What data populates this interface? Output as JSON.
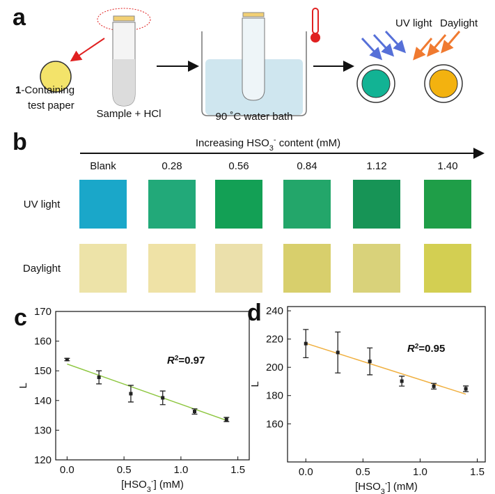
{
  "panel_a": {
    "label": "a",
    "paper_compound": "1",
    "paper_rest": "-Containing",
    "paper_line2": "test paper",
    "tube_label": "Sample + HCl",
    "bath_label": "90 ˚C water bath",
    "uv_label": "UV light",
    "daylight_label": "Daylight"
  },
  "panel_b": {
    "label": "b",
    "title_parts": [
      "Increasing HSO",
      "3",
      "-",
      " content (mM)"
    ],
    "columns": [
      "Blank",
      "0.28",
      "0.56",
      "0.84",
      "1.12",
      "1.40"
    ],
    "rows": [
      {
        "name": "UV light",
        "colors": [
          "#1aa7c9",
          "#22a979",
          "#13a055",
          "#23a66a",
          "#179456",
          "#1f9e48"
        ]
      },
      {
        "name": "Daylight",
        "colors": [
          "#ede3a8",
          "#efe2a6",
          "#ebe0ab",
          "#d8cf6c",
          "#d9d27a",
          "#d3cf52"
        ]
      }
    ]
  },
  "chart_data": [
    {
      "panel": "c",
      "type": "scatter",
      "x": [
        0,
        0.28,
        0.56,
        0.84,
        1.12,
        1.4
      ],
      "series": [
        {
          "values": [
            153.8,
            147.8,
            142.3,
            140.9,
            136.3,
            133.6
          ],
          "errors": [
            0.4,
            2.2,
            2.8,
            2.3,
            0.9,
            0.7
          ],
          "color": "#222222"
        }
      ],
      "fit": {
        "x": [
          0,
          1.4
        ],
        "y": [
          152.3,
          133.3
        ],
        "color": "#8dc63f"
      },
      "annotation_parts": [
        "R",
        "2",
        "=0.97"
      ],
      "xlabel_parts": [
        "[HSO",
        "3",
        "-",
        "] (mM)"
      ],
      "ylabel": "L",
      "xlim": [
        -0.1,
        1.6
      ],
      "ylim": [
        120,
        170
      ],
      "xticks": [
        {
          "value": 0,
          "label": "0.0"
        },
        0.5,
        {
          "value": 1,
          "label": "1.0"
        },
        1.5
      ],
      "yticks": [
        120,
        130,
        140,
        150,
        160,
        170
      ]
    },
    {
      "panel": "d",
      "type": "scatter",
      "x": [
        0,
        0.28,
        0.56,
        0.84,
        1.12,
        1.4
      ],
      "series": [
        {
          "values": [
            216.8,
            210.5,
            204.2,
            190.2,
            186.6,
            184.8
          ],
          "errors": [
            10,
            14.5,
            9.5,
            3.5,
            2,
            2
          ],
          "color": "#222222"
        }
      ],
      "fit": {
        "x": [
          0,
          1.4
        ],
        "y": [
          217,
          181
        ],
        "color": "#f0b040"
      },
      "annotation_parts": [
        "R",
        "2",
        "=0.95"
      ],
      "xlabel_parts": [
        "[HSO",
        "3",
        "-",
        "] (mM)"
      ],
      "ylabel": "L",
      "xlim": [
        -0.16,
        1.57
      ],
      "ylim": [
        133,
        243
      ],
      "xticks": [
        {
          "value": 0,
          "label": "0.0"
        },
        0.5,
        {
          "value": 1,
          "label": "1.0"
        },
        1.5
      ],
      "yticks": [
        160,
        180,
        200,
        220,
        240
      ]
    }
  ]
}
